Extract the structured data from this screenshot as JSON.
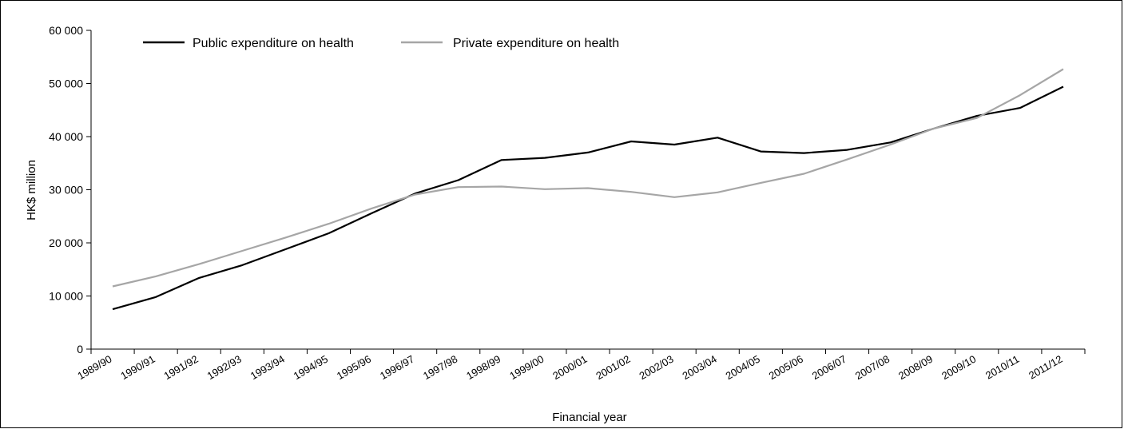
{
  "chart_data": {
    "type": "line",
    "xlabel": "Financial year",
    "ylabel": "HK$ million",
    "ylim": [
      0,
      60000
    ],
    "yticks": [
      0,
      10000,
      20000,
      30000,
      40000,
      50000,
      60000
    ],
    "ytick_labels": [
      "0",
      "10 000",
      "20 000",
      "30 000",
      "40 000",
      "50 000",
      "60 000"
    ],
    "grid": false,
    "legend_position": "top-left",
    "categories": [
      "1989/90",
      "1990/91",
      "1991/92",
      "1992/93",
      "1993/94",
      "1994/95",
      "1995/96",
      "1996/97",
      "1997/98",
      "1998/99",
      "1999/00",
      "2000/01",
      "2001/02",
      "2002/03",
      "2003/04",
      "2004/05",
      "2005/06",
      "2006/07",
      "2007/08",
      "2008/09",
      "2009/10",
      "2010/11",
      "2011/12"
    ],
    "series": [
      {
        "name": "Public expenditure on health",
        "color": "#000000",
        "values": [
          7500,
          9800,
          13400,
          15800,
          18800,
          21800,
          25600,
          29300,
          31800,
          35600,
          36000,
          37000,
          39100,
          38500,
          39800,
          37200,
          36900,
          37500,
          38900,
          41500,
          43900,
          45400,
          49400
        ]
      },
      {
        "name": "Private expenditure on health",
        "color": "#a6a6a6",
        "values": [
          11800,
          13700,
          16000,
          18500,
          21000,
          23600,
          26500,
          29100,
          30500,
          30600,
          30100,
          30300,
          29600,
          28600,
          29500,
          31300,
          33000,
          35700,
          38500,
          41500,
          43500,
          47800,
          52700
        ]
      }
    ]
  }
}
